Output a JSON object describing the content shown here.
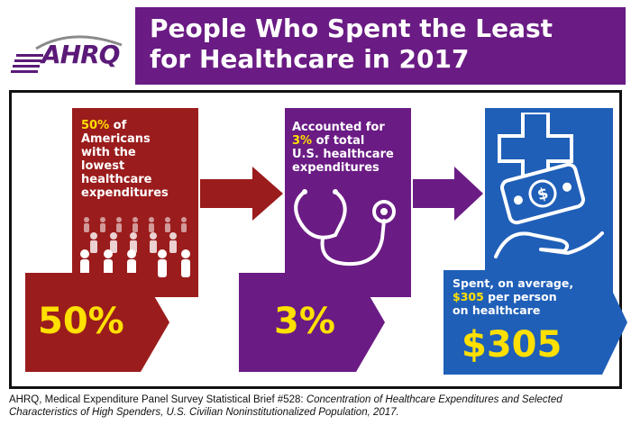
{
  "logo": {
    "text": "AHRQ",
    "icon": "ahrq-logo-icon"
  },
  "title": {
    "line1": "People Who Spent the Least",
    "line2": "for Healthcare in 2017"
  },
  "panels": [
    {
      "highlight": "50%",
      "text_after_highlight": " of",
      "lines": [
        "Americans",
        "with the",
        "lowest",
        "healthcare",
        "expenditures"
      ],
      "big": "50%",
      "icon": "crowd-icon",
      "color": "#9b1c1c"
    },
    {
      "line1": "Accounted for",
      "highlight": "3%",
      "text_after_highlight": " of total",
      "lines": [
        "U.S. healthcare",
        "expenditures"
      ],
      "big": "3%",
      "icon": "stethoscope-icon",
      "color": "#6a1b84"
    },
    {
      "line1": "Spent, on average,",
      "highlight": "$305",
      "text_after_highlight": " per person",
      "line3": "on healthcare",
      "big": "$305",
      "icon": "hand-money-medical-cross-icon",
      "color": "#1f5fb8"
    }
  ],
  "source": {
    "prefix": "AHRQ, Medical Expenditure Panel Survey Statistical Brief #528: ",
    "title": "Concentration of Healthcare Expenditures and Selected Characteristics of High Spenders, U.S. Civilian Noninstitutionalized Population, 2017."
  }
}
